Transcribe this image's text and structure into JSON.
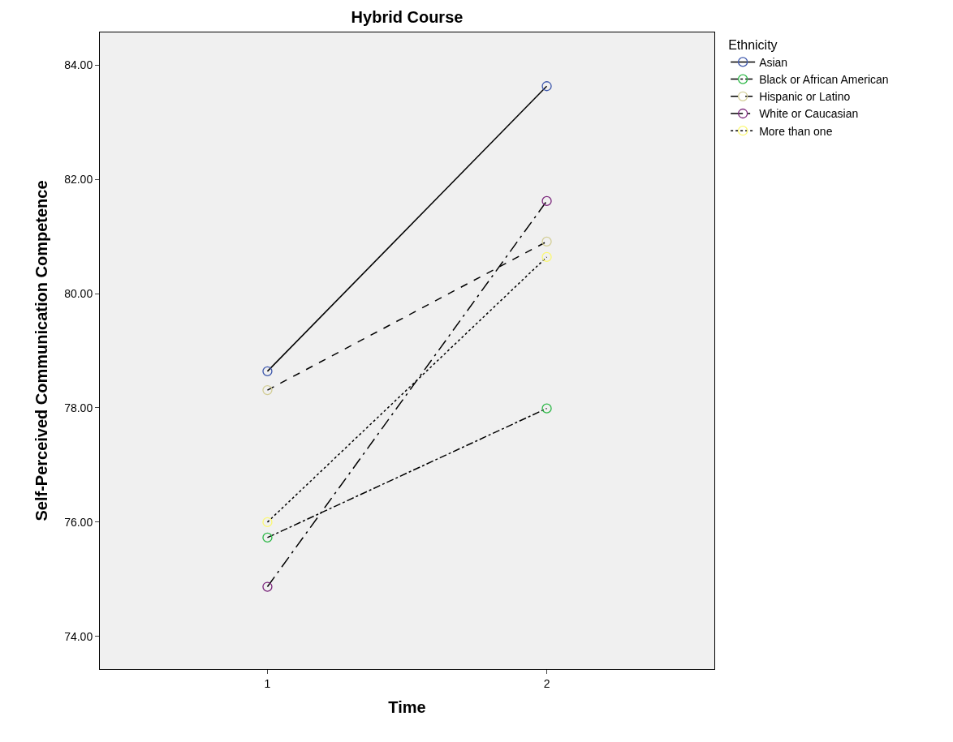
{
  "chart_data": {
    "type": "line",
    "title": "Hybrid Course",
    "xlabel": "Time",
    "ylabel": "Self-Perceived Communication Competence",
    "legend_title": "Ethnicity",
    "x": [
      1,
      2
    ],
    "xlim": [
      0.4,
      2.6
    ],
    "xticks": [
      1,
      2
    ],
    "ylim": [
      73.43,
      84.57
    ],
    "yticks": [
      {
        "value": 74,
        "label": "74.00"
      },
      {
        "value": 76,
        "label": "76.00"
      },
      {
        "value": 78,
        "label": "78.00"
      },
      {
        "value": 80,
        "label": "80.00"
      },
      {
        "value": 82,
        "label": "82.00"
      },
      {
        "value": 84,
        "label": "84.00"
      }
    ],
    "grid": false,
    "legend": "top right",
    "marker": "circle",
    "series": [
      {
        "name": "Asian",
        "color": "#000000",
        "colors": [
          "#3e58ac",
          "#3e58ac"
        ],
        "line_style": "solid",
        "values": [
          78.64,
          83.63
        ]
      },
      {
        "name": "Black or African American",
        "color": "#000000",
        "colors": [
          "#2eb848",
          "#2eb848"
        ],
        "line_style": "dashdot",
        "values": [
          75.73,
          77.99
        ]
      },
      {
        "name": "Hispanic or Latino",
        "color": "#000000",
        "colors": [
          "#d3ce97",
          "#d3ce97"
        ],
        "line_style": "dashed",
        "values": [
          78.31,
          80.91
        ]
      },
      {
        "name": "White or Caucasian",
        "color": "#000000",
        "colors": [
          "#7c287d",
          "#7c287d"
        ],
        "line_style": "longdashdot",
        "values": [
          74.87,
          81.62
        ]
      },
      {
        "name": "More than one",
        "color": "#000000",
        "colors": [
          "#fbf873",
          "#fbf873"
        ],
        "line_style": "dotted",
        "values": [
          76.0,
          80.64
        ]
      }
    ]
  }
}
